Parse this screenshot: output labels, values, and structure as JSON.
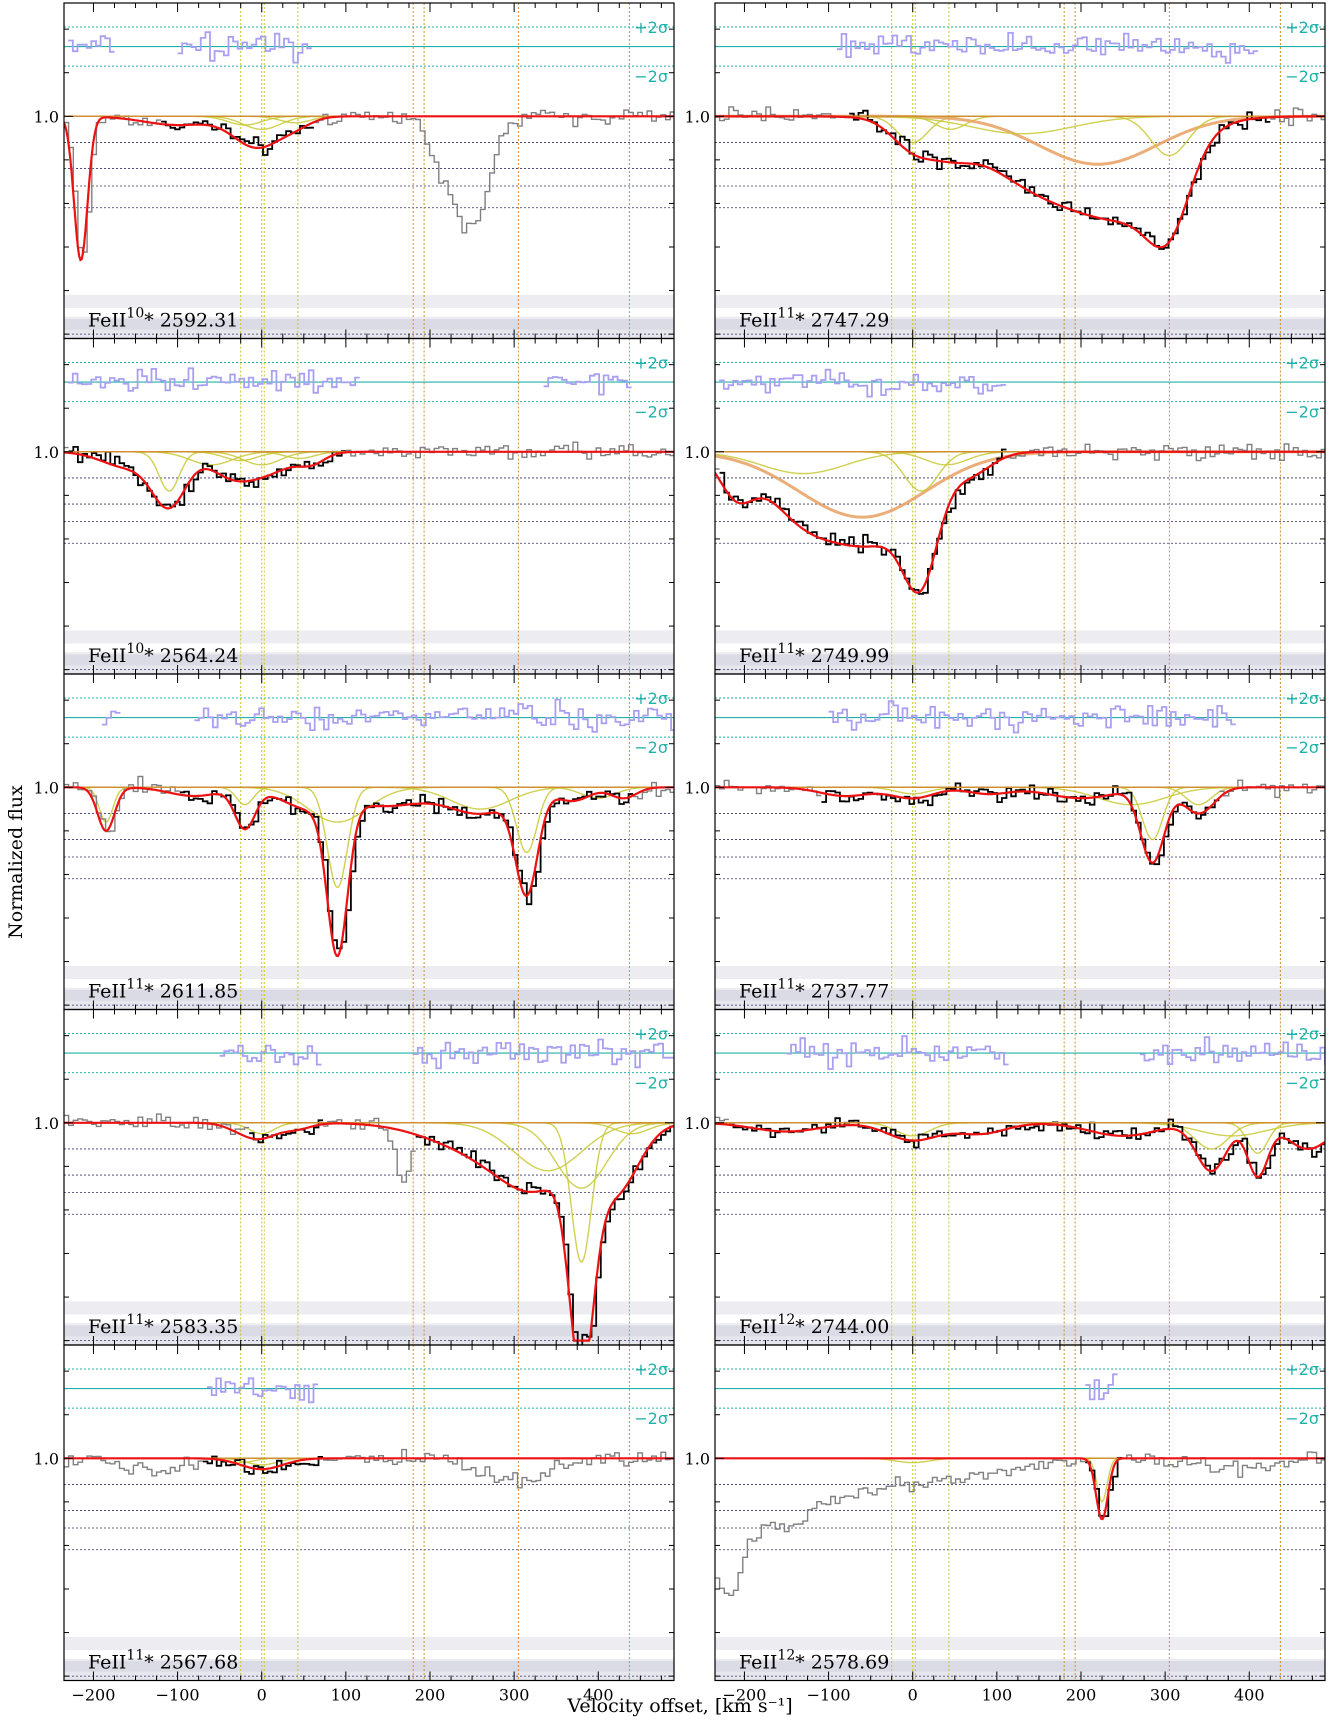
{
  "figure": {
    "ylabel": "Normalized flux",
    "xlabel": "Velocity offset, [km s⁻¹]",
    "sigma_plus": "+2σ",
    "sigma_minus": "−2σ",
    "one_label": "1.0"
  },
  "colors": {
    "flux_fit": "#000000",
    "flux_unfit": "#808080",
    "model": "#ee1111",
    "components": "#c8c832",
    "broad_component": "#e8a060",
    "residuals": "#a8a0f0",
    "sigma_lines": "#20b2aa",
    "comp_markers_yellow": "#c8c820",
    "comp_markers_orange": "#d09030",
    "level_lines": "#333366",
    "shade": "#c8c8d8"
  },
  "chart_data": {
    "type": "line",
    "xlim": [
      -235,
      490
    ],
    "ylim": [
      -0.02,
      1.52
    ],
    "x_ticks": [
      -200,
      -100,
      0,
      100,
      200,
      300,
      400
    ],
    "x_tick_labels": [
      "−200",
      "−100",
      "0",
      "100",
      "200",
      "300",
      "400"
    ],
    "y_tick_labels": [
      "1.0"
    ],
    "component_velocities_yellow": [
      -25,
      0,
      3,
      43
    ],
    "component_velocities_orange": [
      180,
      193,
      305,
      437
    ],
    "panels": [
      {
        "id": "feii10-2592",
        "species": "FeII",
        "level": "10",
        "wavelength": "2592.31",
        "column": 0,
        "row": 0,
        "fit_range": [
          -120,
          60
        ],
        "residual_segments": [
          [
            -230,
            -180
          ],
          [
            -100,
            55
          ]
        ],
        "absorptions": [
          [
            -215,
            0.66,
            8
          ],
          [
            -100,
            0.04,
            40
          ],
          [
            -20,
            0.05,
            25
          ],
          [
            0,
            0.1,
            25
          ],
          [
            40,
            0.04,
            20
          ]
        ],
        "unfit_absorptions": [
          [
            245,
            0.52,
            22
          ],
          [
            205,
            0.12,
            12
          ]
        ],
        "components": [
          [
            0,
            0.06,
            22
          ],
          [
            -20,
            0.04,
            20
          ],
          [
            40,
            0.03,
            18
          ]
        ]
      },
      {
        "id": "feii11-2747",
        "species": "FeII",
        "level": "11",
        "wavelength": "2747.29",
        "column": 1,
        "row": 0,
        "fit_range": [
          -80,
          420
        ],
        "residual_segments": [
          [
            -90,
            405
          ]
        ],
        "absorptions": [
          [
            0,
            0.12,
            25
          ],
          [
            45,
            0.08,
            25
          ],
          [
            130,
            0.2,
            70
          ],
          [
            220,
            0.28,
            70
          ],
          [
            305,
            0.3,
            25
          ],
          [
            270,
            0.18,
            45
          ]
        ],
        "unfit_absorptions": [],
        "components": [
          [
            0,
            0.12,
            18
          ],
          [
            45,
            0.06,
            18
          ],
          [
            220,
            0.22,
            70
          ],
          [
            305,
            0.18,
            22
          ],
          [
            130,
            0.08,
            60
          ]
        ]
      },
      {
        "id": "feii10-2564",
        "species": "FeII",
        "level": "10",
        "wavelength": "2564.24",
        "column": 0,
        "row": 1,
        "fit_range": [
          -230,
          95
        ],
        "residual_segments": [
          [
            -230,
            115
          ],
          [
            335,
            435
          ]
        ],
        "absorptions": [
          [
            -110,
            0.24,
            20
          ],
          [
            -160,
            0.07,
            30
          ],
          [
            -40,
            0.07,
            25
          ],
          [
            0,
            0.1,
            35
          ],
          [
            60,
            0.04,
            15
          ]
        ],
        "unfit_absorptions": [],
        "components": [
          [
            -110,
            0.18,
            12
          ],
          [
            -60,
            0.06,
            25
          ],
          [
            0,
            0.06,
            22
          ],
          [
            -25,
            0.04,
            20
          ],
          [
            45,
            0.03,
            18
          ]
        ]
      },
      {
        "id": "feii11-2749",
        "species": "FeII",
        "level": "11",
        "wavelength": "2749.99",
        "column": 1,
        "row": 1,
        "fit_range": [
          -230,
          110
        ],
        "residual_segments": [
          [
            -230,
            110
          ]
        ],
        "absorptions": [
          [
            -210,
            0.17,
            20
          ],
          [
            -130,
            0.28,
            45
          ],
          [
            -40,
            0.38,
            50
          ],
          [
            10,
            0.4,
            20
          ],
          [
            70,
            0.08,
            25
          ]
        ],
        "unfit_absorptions": [],
        "components": [
          [
            -60,
            0.3,
            75
          ],
          [
            10,
            0.18,
            20
          ],
          [
            -130,
            0.1,
            50
          ],
          [
            40,
            0.06,
            25
          ]
        ]
      },
      {
        "id": "feii11-2611",
        "species": "FeII",
        "level": "11",
        "wavelength": "2611.85",
        "column": 0,
        "row": 2,
        "fit_range": [
          -100,
          440
        ],
        "residual_segments": [
          [
            -190,
            -170
          ],
          [
            -80,
            490
          ]
        ],
        "absorptions": [
          [
            -185,
            0.2,
            10
          ],
          [
            -20,
            0.18,
            12
          ],
          [
            -80,
            0.04,
            30
          ],
          [
            60,
            0.1,
            35
          ],
          [
            90,
            0.68,
            12
          ],
          [
            150,
            0.08,
            40
          ],
          [
            315,
            0.45,
            13
          ],
          [
            260,
            0.12,
            40
          ],
          [
            370,
            0.06,
            20
          ],
          [
            430,
            0.05,
            15
          ]
        ],
        "unfit_absorptions": [],
        "components": [
          [
            -185,
            0.16,
            8
          ],
          [
            -20,
            0.08,
            10
          ],
          [
            90,
            0.46,
            12
          ],
          [
            90,
            0.16,
            35
          ],
          [
            315,
            0.3,
            12
          ],
          [
            260,
            0.1,
            35
          ],
          [
            400,
            0.05,
            20
          ]
        ]
      },
      {
        "id": "feii11-2737",
        "species": "FeII",
        "level": "11",
        "wavelength": "2737.77",
        "column": 1,
        "row": 2,
        "fit_range": [
          -110,
          360
        ],
        "residual_segments": [
          [
            -100,
            380
          ]
        ],
        "absorptions": [
          [
            -80,
            0.04,
            30
          ],
          [
            0,
            0.05,
            25
          ],
          [
            90,
            0.03,
            25
          ],
          [
            200,
            0.05,
            40
          ],
          [
            285,
            0.34,
            14
          ],
          [
            340,
            0.12,
            18
          ]
        ],
        "unfit_absorptions": [],
        "components": [
          [
            285,
            0.24,
            12
          ],
          [
            340,
            0.08,
            15
          ],
          [
            260,
            0.08,
            40
          ],
          [
            0,
            0.03,
            20
          ]
        ]
      },
      {
        "id": "feii11-2583",
        "species": "FeII",
        "level": "11",
        "wavelength": "2583.35",
        "column": 0,
        "row": 3,
        "fit_range": [
          -20,
          70
        ],
        "fit_range2": [
          180,
          490
        ],
        "residual_segments": [
          [
            -50,
            70
          ],
          [
            180,
            490
          ]
        ],
        "absorptions": [
          [
            0,
            0.06,
            18
          ],
          [
            -25,
            0.03,
            18
          ],
          [
            40,
            0.03,
            18
          ],
          [
            260,
            0.12,
            60
          ],
          [
            330,
            0.25,
            45
          ],
          [
            380,
            0.92,
            14
          ],
          [
            420,
            0.3,
            28
          ]
        ],
        "unfit_absorptions": [
          [
            165,
            0.25,
            8
          ]
        ],
        "components": [
          [
            380,
            0.64,
            12
          ],
          [
            380,
            0.3,
            30
          ],
          [
            340,
            0.22,
            40
          ],
          [
            0,
            0.05,
            15
          ],
          [
            440,
            0.05,
            20
          ]
        ]
      },
      {
        "id": "feii12-2744",
        "species": "FeII",
        "level": "12",
        "wavelength": "2744.00",
        "column": 1,
        "row": 3,
        "fit_range": [
          -220,
          490
        ],
        "residual_segments": [
          [
            -150,
            110
          ],
          [
            270,
            490
          ]
        ],
        "absorptions": [
          [
            -150,
            0.04,
            40
          ],
          [
            0,
            0.08,
            30
          ],
          [
            80,
            0.05,
            30
          ],
          [
            250,
            0.06,
            40
          ],
          [
            355,
            0.22,
            18
          ],
          [
            410,
            0.24,
            12
          ],
          [
            470,
            0.12,
            25
          ]
        ],
        "unfit_absorptions": [],
        "components": [
          [
            355,
            0.12,
            20
          ],
          [
            410,
            0.14,
            12
          ],
          [
            0,
            0.06,
            20
          ],
          [
            380,
            0.06,
            40
          ]
        ]
      },
      {
        "id": "feii11-2567",
        "species": "FeII",
        "level": "11",
        "wavelength": "2567.68",
        "column": 0,
        "row": 4,
        "fit_range": [
          -70,
          70
        ],
        "residual_segments": [
          [
            -65,
            65
          ]
        ],
        "absorptions": [
          [
            0,
            0.05,
            25
          ]
        ],
        "unfit_absorptions": [
          [
            300,
            0.1,
            40
          ],
          [
            -130,
            0.06,
            30
          ]
        ],
        "components": [
          [
            0,
            0.03,
            18
          ],
          [
            -25,
            0.02,
            15
          ]
        ]
      },
      {
        "id": "feii12-2578",
        "species": "FeII",
        "level": "12",
        "wavelength": "2578.69",
        "column": 1,
        "row": 4,
        "fit_range": [
          205,
          245
        ],
        "residual_segments": [
          [
            205,
            240
          ]
        ],
        "absorptions": [
          [
            225,
            0.28,
            7
          ]
        ],
        "unfit_absorptions": [
          [
            -225,
            0.55,
            20
          ],
          [
            -160,
            0.3,
            40
          ],
          [
            -60,
            0.12,
            50
          ],
          [
            60,
            0.08,
            60
          ],
          [
            380,
            0.05,
            40
          ]
        ],
        "components": [
          [
            225,
            0.2,
            6
          ],
          [
            0,
            0.02,
            20
          ]
        ]
      }
    ]
  }
}
